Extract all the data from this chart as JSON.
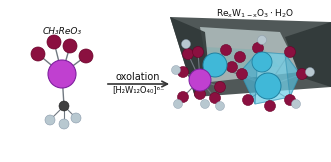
{
  "bg_color": "#ffffff",
  "arrow_label_top": "[H₂W₁₂O₄₀]⁶⁻",
  "arrow_label_bottom": "oxolation",
  "left_label": "CH₃ReO₃",
  "bottom_label": "ReₓW₁₋ₓO₃·H₂O",
  "rhenium_color": "#c040d0",
  "tungsten_color": "#40b8d8",
  "oxygen_color": "#8b1040",
  "carbon_color": "#404040",
  "hydrogen_color": "#b8c8d0",
  "bond_color": "#707880",
  "arrow_color": "#333333",
  "text_color": "#111111",
  "figsize": [
    3.31,
    1.62
  ],
  "dpi": 100
}
